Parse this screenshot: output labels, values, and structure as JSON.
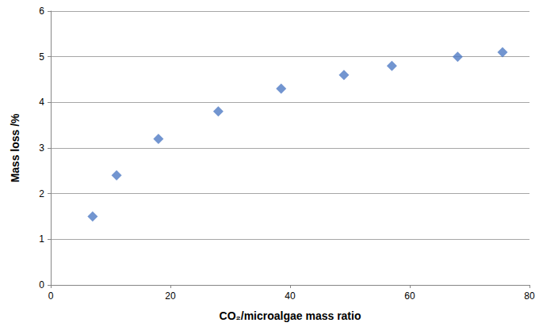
{
  "chart_data": {
    "type": "scatter",
    "x_label": "CO₂/microalgae mass ratio",
    "y_label": "Mass loss /%",
    "x": [
      7,
      11,
      18,
      28,
      38.5,
      49,
      57,
      68,
      75.5
    ],
    "values": [
      1.5,
      2.4,
      3.2,
      3.8,
      4.3,
      4.6,
      4.8,
      5.0,
      5.1
    ],
    "color": "#4f7bc4",
    "marker": "diamond",
    "xlim": [
      0,
      80
    ],
    "xticks": [
      0,
      20,
      40,
      60,
      80
    ],
    "ylim": [
      0,
      6
    ],
    "yticks": [
      0,
      1,
      2,
      3,
      4,
      5,
      6
    ],
    "grid": true
  }
}
